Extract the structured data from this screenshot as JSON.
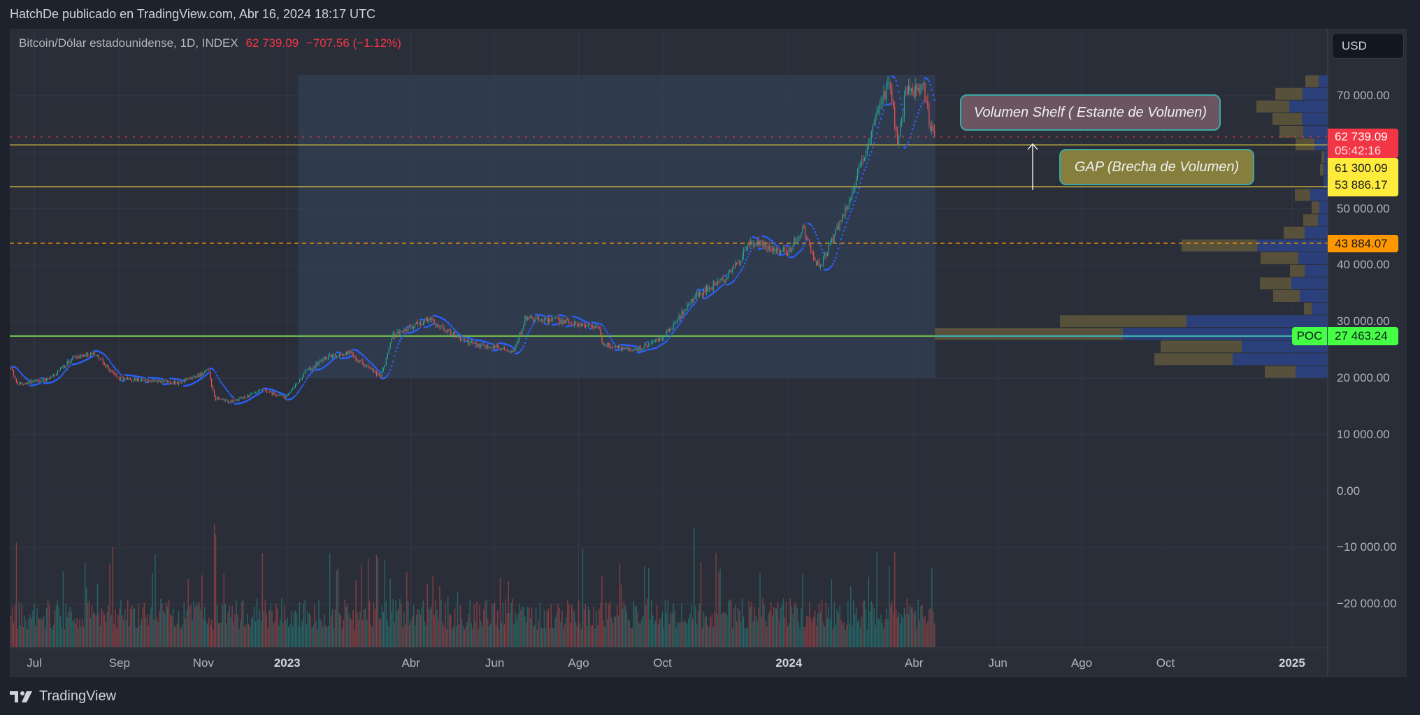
{
  "header": {
    "publish_line": "HatchDe publicado en TradingView.com, Abr 16, 2024 18:17 UTC"
  },
  "legend": {
    "symbol": "Bitcoin/Dólar estadounidense, 1D, INDEX",
    "last": "62 739.09",
    "change": "−707.56 (−1.12%)"
  },
  "currency_button": "USD",
  "price_axis": [
    "70 000.00",
    "50 000.00",
    "40 000.00",
    "30 000.00",
    "20 000.00",
    "10 000.00",
    "0.00",
    "−10 000.00",
    "−20 000.00"
  ],
  "price_tags": {
    "last_price": "62 739.09",
    "countdown": "05:42:16",
    "gap_top": "61 300.09",
    "gap_bottom": "53 886.17",
    "orange_level": "43 884.07",
    "poc_label": "POC",
    "poc_value": "27 463.24"
  },
  "annotations": {
    "shelf": "Volumen Shelf ( Estante de Volumen)",
    "gap": "GAP (Brecha de Volumen)"
  },
  "time_axis": [
    {
      "label": "Jul",
      "bold": false
    },
    {
      "label": "Sep",
      "bold": false
    },
    {
      "label": "Nov",
      "bold": false
    },
    {
      "label": "2023",
      "bold": true
    },
    {
      "label": "Abr",
      "bold": false
    },
    {
      "label": "Jun",
      "bold": false
    },
    {
      "label": "Ago",
      "bold": false
    },
    {
      "label": "Oct",
      "bold": false
    },
    {
      "label": "2024",
      "bold": true
    },
    {
      "label": "Abr",
      "bold": false
    },
    {
      "label": "Jun",
      "bold": false
    },
    {
      "label": "Ago",
      "bold": false
    },
    {
      "label": "Oct",
      "bold": false
    },
    {
      "label": "2025",
      "bold": true
    }
  ],
  "footer": {
    "brand": "TradingView"
  },
  "colors": {
    "up": "#26a69a",
    "down": "#ef5350",
    "sar": "#2962ff",
    "gap_lines": "#ffeb3b",
    "last_price": "#f23645",
    "orange": "#ff9800",
    "poc": "#4caf50",
    "vp_up": "#2b3f7a",
    "vp_down": "#57503a",
    "range_fill": "#34465e"
  },
  "chart_data": {
    "type": "candlestick",
    "symbol": "BTCUSD",
    "interval": "1D",
    "ylim": [
      -25000,
      78000
    ],
    "xlim": [
      "2022-06-14",
      "2025-01-20"
    ],
    "grid": true,
    "approx_close_path": [
      [
        "2022-06-14",
        22000
      ],
      [
        "2022-06-18",
        19000
      ],
      [
        "2022-07-01",
        19500
      ],
      [
        "2022-07-12",
        19800
      ],
      [
        "2022-07-30",
        23800
      ],
      [
        "2022-08-14",
        24400
      ],
      [
        "2022-08-31",
        20000
      ],
      [
        "2022-09-15",
        19700
      ],
      [
        "2022-10-15",
        19200
      ],
      [
        "2022-11-05",
        21300
      ],
      [
        "2022-11-09",
        16500
      ],
      [
        "2022-11-21",
        15800
      ],
      [
        "2022-12-14",
        17800
      ],
      [
        "2022-12-31",
        16550
      ],
      [
        "2023-01-14",
        21000
      ],
      [
        "2023-01-29",
        23700
      ],
      [
        "2023-02-16",
        24500
      ],
      [
        "2023-03-10",
        20200
      ],
      [
        "2023-03-18",
        27500
      ],
      [
        "2023-04-14",
        30500
      ],
      [
        "2023-05-12",
        26300
      ],
      [
        "2023-06-15",
        25000
      ],
      [
        "2023-06-23",
        30500
      ],
      [
        "2023-07-14",
        30300
      ],
      [
        "2023-08-16",
        29000
      ],
      [
        "2023-08-18",
        26000
      ],
      [
        "2023-09-11",
        25000
      ],
      [
        "2023-10-01",
        27000
      ],
      [
        "2023-10-24",
        34500
      ],
      [
        "2023-11-15",
        37500
      ],
      [
        "2023-12-05",
        44000
      ],
      [
        "2023-12-31",
        42300
      ],
      [
        "2024-01-11",
        46500
      ],
      [
        "2024-01-23",
        39500
      ],
      [
        "2024-02-14",
        51800
      ],
      [
        "2024-02-28",
        62000
      ],
      [
        "2024-03-14",
        73000
      ],
      [
        "2024-03-20",
        62000
      ],
      [
        "2024-03-26",
        70500
      ],
      [
        "2024-04-08",
        71600
      ],
      [
        "2024-04-13",
        64000
      ],
      [
        "2024-04-16",
        62739.09
      ]
    ],
    "levels": {
      "last": 62739.09,
      "gap_top": 61300.09,
      "gap_bottom": 53886.17,
      "orange": 43884.07,
      "poc": 27463.24
    },
    "volume_profile_range": {
      "from": "2023-01-09",
      "to": "2024-04-16",
      "price_low": 20000,
      "price_high": 73700
    },
    "volume_profile_rows_top_to_bottom": [
      [
        19,
        13
      ],
      [
        39,
        36
      ],
      [
        47,
        55
      ],
      [
        42,
        37
      ],
      [
        34,
        35
      ],
      [
        27,
        19
      ],
      [
        4,
        5
      ],
      [
        5,
        6
      ],
      [
        0,
        6
      ],
      [
        22,
        25
      ],
      [
        11,
        12
      ],
      [
        21,
        14
      ],
      [
        30,
        33
      ],
      [
        108,
        101
      ],
      [
        54,
        42
      ],
      [
        21,
        33
      ],
      [
        45,
        52
      ],
      [
        38,
        40
      ],
      [
        11,
        23
      ],
      [
        181,
        202
      ],
      [
        269,
        293
      ],
      [
        116,
        123
      ],
      [
        112,
        136
      ],
      [
        44,
        46
      ]
    ],
    "volume_profile_row_format": [
      "down_volume_rel",
      "up_volume_rel"
    ]
  }
}
